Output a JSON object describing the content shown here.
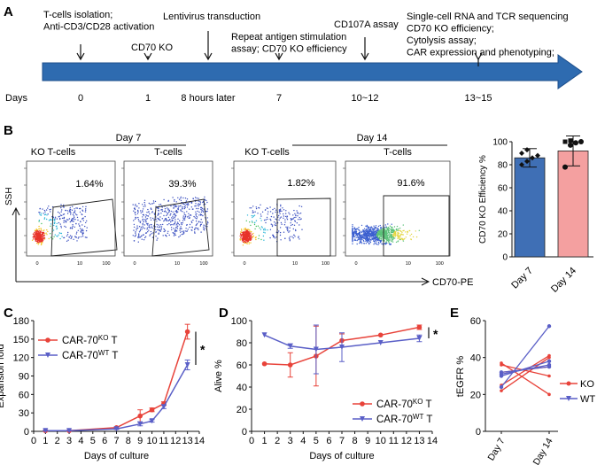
{
  "panels": {
    "A": {
      "letter": "A",
      "axis_label": "Days",
      "events": [
        {
          "day": "0",
          "lines": [
            "T-cells isolation;",
            "Anti-CD3/CD28 activation"
          ]
        },
        {
          "day": "1",
          "lines": [
            "CD70 KO"
          ]
        },
        {
          "day": "8 hours later",
          "lines": [
            "Lentivirus transduction"
          ]
        },
        {
          "day": "7",
          "lines": [
            "Repeat antigen stimulation",
            "assay; CD70 KO efficiency"
          ]
        },
        {
          "day": "10~12",
          "lines": [
            "CD107A assay"
          ]
        },
        {
          "day": "13~15",
          "lines": [
            "Single-cell RNA and TCR sequencing",
            "CD70 KO efficiency;",
            "Cytolysis assay;",
            "CAR expression and phenotyping;"
          ]
        }
      ],
      "bar_color": "#2e6bb0"
    },
    "B": {
      "letter": "B",
      "group_labels": [
        "Day 7",
        "Day 14"
      ],
      "plots": [
        {
          "label": "KO T-cells",
          "percent": "1.64%",
          "ticks": [
            "0",
            "10",
            "100"
          ]
        },
        {
          "label": "T-cells",
          "percent": "39.3%",
          "ticks": [
            "0",
            "10",
            "100"
          ]
        },
        {
          "label": "KO T-cells",
          "percent": "1.82%",
          "ticks": [
            "0",
            "10",
            "100"
          ]
        },
        {
          "label": "T-cells",
          "percent": "91.6%",
          "ticks": [
            "0",
            "10",
            "100"
          ]
        }
      ],
      "y_axis_label": "SSH",
      "x_axis_label": "CD70-PE"
    },
    "C": {
      "letter": "C"
    },
    "D": {
      "letter": "D"
    },
    "E": {
      "letter": "E"
    }
  },
  "chart_data": [
    {
      "id": "B-bar",
      "type": "bar",
      "categories": [
        "Day 7",
        "Day 14"
      ],
      "values": [
        86,
        92
      ],
      "errors": [
        8,
        13
      ],
      "ylabel": "CD70 KO Efficiency %",
      "ylim": [
        0,
        100
      ],
      "yticks": [
        0,
        20,
        40,
        60,
        80,
        100
      ],
      "colors": [
        "#3f6fb5",
        "#f4a0a0"
      ],
      "points": [
        [
          80,
          83,
          86,
          88,
          90,
          93
        ],
        [
          78,
          97,
          99,
          100,
          100,
          101
        ]
      ]
    },
    {
      "id": "C",
      "type": "line",
      "xlabel": "Days of culture",
      "ylabel": "Expansion fold",
      "xlim": [
        0,
        14
      ],
      "ylim": [
        0,
        180
      ],
      "xticks": [
        0,
        1,
        2,
        3,
        4,
        5,
        6,
        7,
        8,
        9,
        10,
        11,
        12,
        13,
        14
      ],
      "yticks": [
        0,
        30,
        60,
        90,
        120,
        150,
        180
      ],
      "significance": "*",
      "series": [
        {
          "name": "CAR-70",
          "sup": "KO",
          "suffix": " T",
          "color": "#e8433a",
          "x": [
            1,
            3,
            7,
            9,
            10,
            11,
            13
          ],
          "y": [
            1,
            1,
            6,
            25,
            35,
            45,
            162
          ],
          "err": [
            0.5,
            0.5,
            1,
            10,
            3,
            3,
            12
          ]
        },
        {
          "name": "CAR-70",
          "sup": "WT",
          "suffix": " T",
          "color": "#5a5fc7",
          "x": [
            1,
            3,
            7,
            9,
            10,
            11,
            13
          ],
          "y": [
            1,
            1,
            4,
            12,
            17,
            40,
            108
          ],
          "err": [
            0.5,
            0.5,
            1,
            3,
            2,
            3,
            8
          ]
        }
      ]
    },
    {
      "id": "D",
      "type": "line",
      "xlabel": "Days of culture",
      "ylabel": "Alive %",
      "xlim": [
        0,
        14
      ],
      "ylim": [
        0,
        100
      ],
      "xticks": [
        0,
        1,
        2,
        3,
        4,
        5,
        6,
        7,
        8,
        9,
        10,
        11,
        12,
        13,
        14
      ],
      "yticks": [
        0,
        20,
        40,
        60,
        80,
        100
      ],
      "significance": "*",
      "series": [
        {
          "name": "CAR-70",
          "sup": "KO",
          "suffix": " T",
          "color": "#e8433a",
          "x": [
            1,
            3,
            5,
            7,
            10,
            13
          ],
          "y": [
            61,
            60,
            68,
            82,
            87,
            94
          ],
          "err": [
            0,
            11,
            27,
            6,
            0,
            2
          ]
        },
        {
          "name": "CAR-70",
          "sup": "WT",
          "suffix": " T",
          "color": "#5a5fc7",
          "x": [
            1,
            3,
            5,
            7,
            10,
            13
          ],
          "y": [
            87,
            77,
            74,
            76,
            80,
            84
          ],
          "err": [
            0,
            2,
            22,
            13,
            0,
            3
          ]
        }
      ]
    },
    {
      "id": "E",
      "type": "line",
      "categories": [
        "Day 7",
        "Day 14"
      ],
      "ylabel": "tEGFR %",
      "ylim": [
        0,
        60
      ],
      "yticks": [
        0,
        20,
        40,
        60
      ],
      "legend": [
        {
          "name": "KO",
          "color": "#e8433a"
        },
        {
          "name": "WT",
          "color": "#5a5fc7"
        }
      ],
      "pairs": [
        {
          "group": "KO",
          "values": [
            37,
            20
          ]
        },
        {
          "group": "KO",
          "values": [
            36,
            30
          ]
        },
        {
          "group": "KO",
          "values": [
            32,
            35
          ]
        },
        {
          "group": "KO",
          "values": [
            25,
            41
          ]
        },
        {
          "group": "KO",
          "values": [
            22,
            40
          ]
        },
        {
          "group": "WT",
          "values": [
            24,
            57
          ]
        },
        {
          "group": "WT",
          "values": [
            30,
            38
          ]
        },
        {
          "group": "WT",
          "values": [
            32,
            35
          ]
        },
        {
          "group": "WT",
          "values": [
            31,
            36
          ]
        }
      ]
    }
  ]
}
